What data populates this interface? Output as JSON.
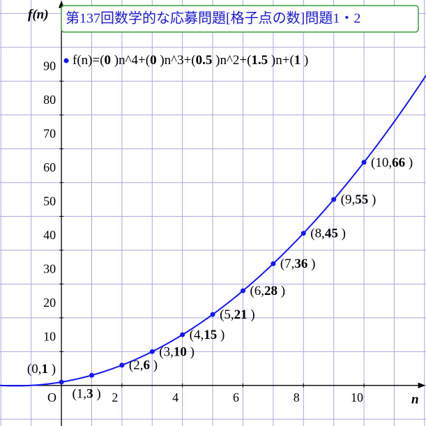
{
  "chart_data": {
    "type": "scatter",
    "title": "第137回数学的な応募問題[格子点の数]問題1・2",
    "x_label": "n",
    "y_label": "f(n)",
    "origin_label": "O",
    "function": {
      "label": "f(n)=(0 )n^4+(0 )n^3+(0.5 )n^2+(1.5 )n+(1 )",
      "coefficients": [
        0,
        0,
        0.5,
        1.5,
        1
      ]
    },
    "x": [
      0,
      1,
      2,
      3,
      4,
      5,
      6,
      7,
      8,
      9,
      10
    ],
    "values": [
      1,
      3,
      6,
      10,
      15,
      21,
      28,
      36,
      45,
      55,
      66
    ],
    "value_labels": [
      "(0,1 )",
      "(1,3 )",
      "(2,6 )",
      "(3,10 )",
      "(4,15 )",
      "(5,21 )",
      "(6,28 )",
      "(7,36 )",
      "(8,45 )",
      "(9,55 )",
      "(10,66 )"
    ],
    "color": "#1414ff",
    "xlim": [
      -2.03,
      12.05
    ],
    "ylim": [
      -12,
      114
    ],
    "xticks": [
      2,
      4,
      6,
      8,
      10
    ],
    "yticks": [
      10,
      20,
      30,
      40,
      50,
      60,
      70,
      80,
      90
    ],
    "x_grid_step": 1,
    "y_grid_step": 10,
    "grid": true
  }
}
